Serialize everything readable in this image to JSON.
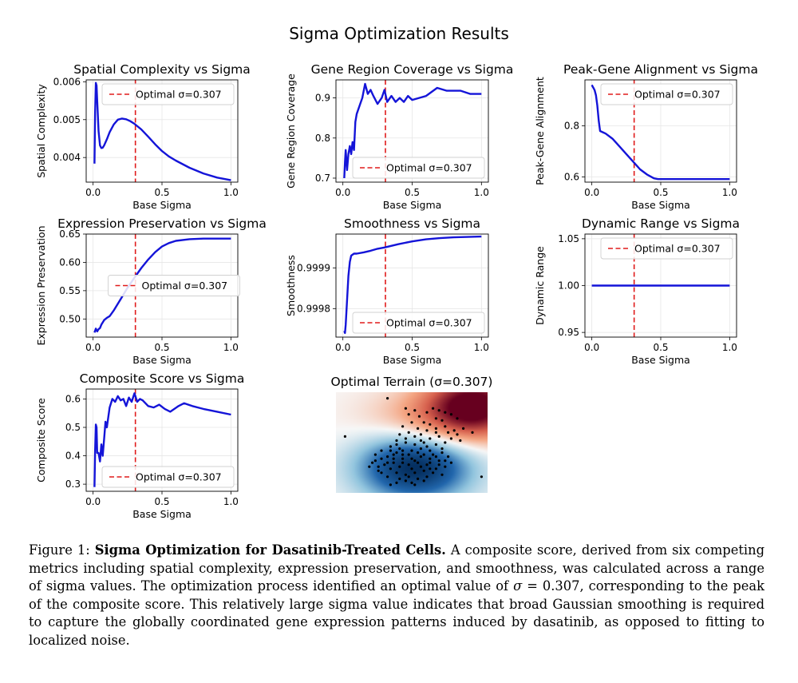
{
  "figure": {
    "suptitle": "Sigma Optimization Results",
    "caption": {
      "label": "Figure 1: ",
      "bold": "Sigma Optimization for Dasatinib-Treated Cells.",
      "text_before": " A composite score, derived from six competing metrics including spatial complexity, expression preservation, and smoothness, was calculated across a range of sigma values. The optimization process identified an optimal value of ",
      "math_sigma": "σ",
      "math_eq": " = 0.307",
      "text_after": ", corresponding to the peak of the composite score. This relatively large sigma value indicates that broad Gaussian smoothing is required to capture the globally coordinated gene expression patterns induced by dasatinib, as opposed to fitting to localized noise."
    },
    "colors": {
      "curve": "#1414d8",
      "optimal": "#e01b1b",
      "grid": "#e6e6e6"
    }
  },
  "chart_data": [
    {
      "type": "line",
      "title": "Spatial Complexity vs Sigma",
      "xlabel": "Base Sigma",
      "ylabel": "Spatial Complexity",
      "xlim": [
        -0.05,
        1.05
      ],
      "ylim": [
        0.00335,
        0.00605
      ],
      "xticks": [
        0.0,
        0.5,
        1.0
      ],
      "xtick_labels": [
        "0.0",
        "0.5",
        "1.0"
      ],
      "yticks": [
        0.004,
        0.005,
        0.006
      ],
      "ytick_labels": [
        "0.004",
        "0.005",
        "0.006"
      ],
      "legend": "Optimal σ=0.307",
      "legend_loc": "upper-right",
      "optimal": 0.307,
      "x": [
        0.01,
        0.015,
        0.02,
        0.025,
        0.03,
        0.04,
        0.05,
        0.06,
        0.07,
        0.08,
        0.1,
        0.12,
        0.15,
        0.18,
        0.21,
        0.24,
        0.27,
        0.3,
        0.35,
        0.4,
        0.45,
        0.5,
        0.55,
        0.6,
        0.7,
        0.8,
        0.9,
        1.0
      ],
      "y": [
        0.00384,
        0.0052,
        0.00597,
        0.0059,
        0.0055,
        0.0047,
        0.00432,
        0.00425,
        0.00426,
        0.00432,
        0.00448,
        0.00467,
        0.00487,
        0.005,
        0.00503,
        0.00501,
        0.00496,
        0.00489,
        0.00474,
        0.00455,
        0.00435,
        0.00417,
        0.00403,
        0.00392,
        0.00373,
        0.00358,
        0.00347,
        0.0034
      ]
    },
    {
      "type": "line",
      "title": "Gene Region Coverage vs Sigma",
      "xlabel": "Base Sigma",
      "ylabel": "Gene Region Coverage",
      "xlim": [
        -0.05,
        1.05
      ],
      "ylim": [
        0.69,
        0.945
      ],
      "xticks": [
        0.0,
        0.5,
        1.0
      ],
      "xtick_labels": [
        "0.0",
        "0.5",
        "1.0"
      ],
      "yticks": [
        0.7,
        0.8,
        0.9
      ],
      "ytick_labels": [
        "0.7",
        "0.8",
        "0.9"
      ],
      "legend": "Optimal σ=0.307",
      "legend_loc": "lower-right",
      "optimal": 0.307,
      "x": [
        0.01,
        0.015,
        0.02,
        0.03,
        0.04,
        0.05,
        0.06,
        0.07,
        0.08,
        0.09,
        0.1,
        0.12,
        0.14,
        0.16,
        0.18,
        0.2,
        0.22,
        0.25,
        0.28,
        0.3,
        0.32,
        0.35,
        0.38,
        0.41,
        0.44,
        0.47,
        0.5,
        0.55,
        0.6,
        0.68,
        0.75,
        0.85,
        0.92,
        1.0
      ],
      "y": [
        0.7,
        0.74,
        0.77,
        0.72,
        0.76,
        0.78,
        0.76,
        0.79,
        0.77,
        0.84,
        0.86,
        0.88,
        0.9,
        0.935,
        0.91,
        0.92,
        0.905,
        0.885,
        0.9,
        0.92,
        0.89,
        0.905,
        0.89,
        0.9,
        0.89,
        0.905,
        0.895,
        0.9,
        0.905,
        0.925,
        0.918,
        0.918,
        0.91,
        0.91
      ]
    },
    {
      "type": "line",
      "title": "Peak-Gene Alignment vs Sigma",
      "xlabel": "Base Sigma",
      "ylabel": "Peak-Gene Alignment",
      "xlim": [
        -0.05,
        1.05
      ],
      "ylim": [
        0.58,
        0.98
      ],
      "xticks": [
        0.0,
        0.5,
        1.0
      ],
      "xtick_labels": [
        "0.0",
        "0.5",
        "1.0"
      ],
      "yticks": [
        0.6,
        0.8
      ],
      "ytick_labels": [
        "0.6",
        "0.8"
      ],
      "legend": "Optimal σ=0.307",
      "legend_loc": "upper-right",
      "optimal": 0.307,
      "x": [
        0.0,
        0.01,
        0.02,
        0.03,
        0.04,
        0.05,
        0.06,
        0.08,
        0.1,
        0.15,
        0.2,
        0.25,
        0.3,
        0.35,
        0.4,
        0.45,
        0.48,
        0.5,
        0.6,
        0.8,
        1.0
      ],
      "y": [
        0.96,
        0.95,
        0.94,
        0.92,
        0.88,
        0.82,
        0.78,
        0.775,
        0.77,
        0.75,
        0.72,
        0.69,
        0.66,
        0.63,
        0.61,
        0.595,
        0.592,
        0.592,
        0.592,
        0.592,
        0.592
      ]
    },
    {
      "type": "line",
      "title": "Expression Preservation vs Sigma",
      "xlabel": "Base Sigma",
      "ylabel": "Expression Preservation",
      "xlim": [
        -0.05,
        1.05
      ],
      "ylim": [
        0.468,
        0.65
      ],
      "xticks": [
        0.0,
        0.5,
        1.0
      ],
      "xtick_labels": [
        "0.0",
        "0.5",
        "1.0"
      ],
      "yticks": [
        0.5,
        0.55,
        0.6,
        0.65
      ],
      "ytick_labels": [
        "0.50",
        "0.55",
        "0.60",
        "0.65"
      ],
      "legend": "Optimal σ=0.307",
      "legend_loc": "center",
      "optimal": 0.307,
      "x": [
        0.01,
        0.02,
        0.03,
        0.04,
        0.05,
        0.06,
        0.08,
        0.1,
        0.12,
        0.15,
        0.2,
        0.25,
        0.3,
        0.35,
        0.4,
        0.45,
        0.5,
        0.55,
        0.6,
        0.7,
        0.8,
        0.9,
        1.0
      ],
      "y": [
        0.476,
        0.483,
        0.478,
        0.482,
        0.484,
        0.49,
        0.498,
        0.502,
        0.505,
        0.515,
        0.535,
        0.555,
        0.573,
        0.59,
        0.605,
        0.618,
        0.628,
        0.634,
        0.638,
        0.641,
        0.642,
        0.642,
        0.642
      ]
    },
    {
      "type": "line",
      "title": "Smoothness vs Sigma",
      "xlabel": "Base Sigma",
      "ylabel": "Smoothness",
      "xlim": [
        -0.05,
        1.05
      ],
      "ylim": [
        0.99973,
        0.999983
      ],
      "xticks": [
        0.0,
        0.5,
        1.0
      ],
      "xtick_labels": [
        "0.0",
        "0.5",
        "1.0"
      ],
      "yticks": [
        0.9998,
        0.9999
      ],
      "ytick_labels": [
        "0.9998",
        "0.9999"
      ],
      "legend": "Optimal σ=0.307",
      "legend_loc": "lower-right",
      "optimal": 0.307,
      "x": [
        0.01,
        0.015,
        0.02,
        0.03,
        0.04,
        0.05,
        0.06,
        0.08,
        0.1,
        0.15,
        0.2,
        0.25,
        0.3,
        0.4,
        0.5,
        0.6,
        0.7,
        0.8,
        0.9,
        1.0
      ],
      "y": [
        0.999745,
        0.99974,
        0.99976,
        0.99982,
        0.99988,
        0.999915,
        0.99993,
        0.999935,
        0.999935,
        0.999938,
        0.999942,
        0.999947,
        0.99995,
        0.999958,
        0.999965,
        0.99997,
        0.999973,
        0.999975,
        0.999976,
        0.999977
      ]
    },
    {
      "type": "line",
      "title": "Dynamic Range vs Sigma",
      "xlabel": "Base Sigma",
      "ylabel": "Dynamic Range",
      "xlim": [
        -0.05,
        1.05
      ],
      "ylim": [
        0.945,
        1.055
      ],
      "xticks": [
        0.0,
        0.5,
        1.0
      ],
      "xtick_labels": [
        "0.0",
        "0.5",
        "1.0"
      ],
      "yticks": [
        0.95,
        1.0,
        1.05
      ],
      "ytick_labels": [
        "0.95",
        "1.00",
        "1.05"
      ],
      "legend": "Optimal σ=0.307",
      "legend_loc": "upper-right",
      "optimal": 0.307,
      "x": [
        0.0,
        1.0
      ],
      "y": [
        1.0,
        1.0
      ]
    },
    {
      "type": "line",
      "title": "Composite Score vs Sigma",
      "xlabel": "Base Sigma",
      "ylabel": "Composite Score",
      "xlim": [
        -0.05,
        1.05
      ],
      "ylim": [
        0.275,
        0.635
      ],
      "xticks": [
        0.0,
        0.5,
        1.0
      ],
      "xtick_labels": [
        "0.0",
        "0.5",
        "1.0"
      ],
      "yticks": [
        0.3,
        0.4,
        0.5,
        0.6
      ],
      "ytick_labels": [
        "0.3",
        "0.4",
        "0.5",
        "0.6"
      ],
      "legend": "Optimal σ=0.307",
      "legend_loc": "lower-right",
      "optimal": 0.307,
      "x": [
        0.01,
        0.015,
        0.02,
        0.025,
        0.03,
        0.04,
        0.05,
        0.06,
        0.07,
        0.08,
        0.09,
        0.1,
        0.12,
        0.14,
        0.16,
        0.18,
        0.2,
        0.22,
        0.24,
        0.26,
        0.28,
        0.3,
        0.32,
        0.34,
        0.36,
        0.4,
        0.44,
        0.48,
        0.52,
        0.56,
        0.62,
        0.66,
        0.72,
        0.8,
        0.9,
        1.0
      ],
      "y": [
        0.29,
        0.42,
        0.51,
        0.5,
        0.41,
        0.41,
        0.38,
        0.44,
        0.4,
        0.46,
        0.52,
        0.5,
        0.57,
        0.6,
        0.59,
        0.61,
        0.595,
        0.6,
        0.575,
        0.605,
        0.59,
        0.62,
        0.59,
        0.6,
        0.595,
        0.575,
        0.57,
        0.58,
        0.565,
        0.555,
        0.575,
        0.585,
        0.575,
        0.565,
        0.555,
        0.545
      ]
    },
    {
      "type": "heatmap",
      "title": "Optimal Terrain (σ=0.307)",
      "colormap": "RdBu_r",
      "blobs": [
        {
          "cx": 0.52,
          "cy": 0.74,
          "sx": 0.26,
          "sy": 0.24,
          "amp": -1.0
        },
        {
          "cx": 0.92,
          "cy": 0.12,
          "sx": 0.22,
          "sy": 0.22,
          "amp": 1.0
        },
        {
          "cx": 0.62,
          "cy": 0.3,
          "sx": 0.3,
          "sy": 0.22,
          "amp": 0.35
        }
      ],
      "points": [
        [
          0.34,
          0.06
        ],
        [
          0.46,
          0.16
        ],
        [
          0.52,
          0.18
        ],
        [
          0.48,
          0.22
        ],
        [
          0.55,
          0.24
        ],
        [
          0.6,
          0.2
        ],
        [
          0.64,
          0.16
        ],
        [
          0.68,
          0.18
        ],
        [
          0.72,
          0.2
        ],
        [
          0.76,
          0.22
        ],
        [
          0.8,
          0.26
        ],
        [
          0.66,
          0.26
        ],
        [
          0.7,
          0.28
        ],
        [
          0.58,
          0.3
        ],
        [
          0.62,
          0.32
        ],
        [
          0.5,
          0.3
        ],
        [
          0.44,
          0.34
        ],
        [
          0.54,
          0.36
        ],
        [
          0.6,
          0.38
        ],
        [
          0.66,
          0.36
        ],
        [
          0.72,
          0.34
        ],
        [
          0.78,
          0.38
        ],
        [
          0.84,
          0.36
        ],
        [
          0.76,
          0.46
        ],
        [
          0.82,
          0.48
        ],
        [
          0.42,
          0.42
        ],
        [
          0.48,
          0.4
        ],
        [
          0.52,
          0.44
        ],
        [
          0.56,
          0.42
        ],
        [
          0.62,
          0.46
        ],
        [
          0.68,
          0.44
        ],
        [
          0.72,
          0.5
        ],
        [
          0.66,
          0.52
        ],
        [
          0.58,
          0.5
        ],
        [
          0.52,
          0.52
        ],
        [
          0.46,
          0.5
        ],
        [
          0.4,
          0.48
        ],
        [
          0.36,
          0.54
        ],
        [
          0.3,
          0.58
        ],
        [
          0.34,
          0.64
        ],
        [
          0.4,
          0.6
        ],
        [
          0.44,
          0.58
        ],
        [
          0.5,
          0.58
        ],
        [
          0.56,
          0.56
        ],
        [
          0.62,
          0.58
        ],
        [
          0.7,
          0.6
        ],
        [
          0.74,
          0.64
        ],
        [
          0.68,
          0.68
        ],
        [
          0.62,
          0.66
        ],
        [
          0.56,
          0.64
        ],
        [
          0.5,
          0.66
        ],
        [
          0.44,
          0.66
        ],
        [
          0.38,
          0.7
        ],
        [
          0.32,
          0.72
        ],
        [
          0.26,
          0.68
        ],
        [
          0.22,
          0.74
        ],
        [
          0.28,
          0.78
        ],
        [
          0.36,
          0.76
        ],
        [
          0.42,
          0.74
        ],
        [
          0.48,
          0.72
        ],
        [
          0.54,
          0.7
        ],
        [
          0.6,
          0.72
        ],
        [
          0.66,
          0.76
        ],
        [
          0.72,
          0.74
        ],
        [
          0.76,
          0.7
        ],
        [
          0.64,
          0.8
        ],
        [
          0.58,
          0.78
        ],
        [
          0.52,
          0.8
        ],
        [
          0.46,
          0.82
        ],
        [
          0.4,
          0.8
        ],
        [
          0.34,
          0.84
        ],
        [
          0.46,
          0.88
        ],
        [
          0.54,
          0.86
        ],
        [
          0.6,
          0.84
        ],
        [
          0.36,
          0.92
        ],
        [
          0.5,
          0.9
        ],
        [
          0.06,
          0.44
        ],
        [
          0.96,
          0.84
        ],
        [
          0.9,
          0.4
        ],
        [
          0.24,
          0.7
        ],
        [
          0.3,
          0.66
        ],
        [
          0.38,
          0.62
        ],
        [
          0.42,
          0.56
        ],
        [
          0.58,
          0.62
        ],
        [
          0.7,
          0.56
        ],
        [
          0.26,
          0.62
        ],
        [
          0.48,
          0.62
        ],
        [
          0.54,
          0.6
        ],
        [
          0.64,
          0.62
        ],
        [
          0.68,
          0.72
        ],
        [
          0.56,
          0.74
        ],
        [
          0.44,
          0.7
        ],
        [
          0.38,
          0.66
        ],
        [
          0.5,
          0.76
        ],
        [
          0.62,
          0.76
        ],
        [
          0.7,
          0.82
        ],
        [
          0.48,
          0.84
        ],
        [
          0.42,
          0.86
        ],
        [
          0.58,
          0.88
        ],
        [
          0.3,
          0.8
        ],
        [
          0.52,
          0.68
        ],
        [
          0.6,
          0.54
        ],
        [
          0.46,
          0.46
        ],
        [
          0.74,
          0.4
        ],
        [
          0.8,
          0.42
        ],
        [
          0.66,
          0.4
        ],
        [
          0.56,
          0.48
        ],
        [
          0.4,
          0.52
        ],
        [
          0.36,
          0.58
        ],
        [
          0.44,
          0.62
        ],
        [
          0.28,
          0.74
        ],
        [
          0.34,
          0.7
        ],
        [
          0.62,
          0.7
        ],
        [
          0.66,
          0.64
        ],
        [
          0.72,
          0.68
        ],
        [
          0.52,
          0.92
        ],
        [
          0.4,
          0.9
        ]
      ]
    }
  ]
}
